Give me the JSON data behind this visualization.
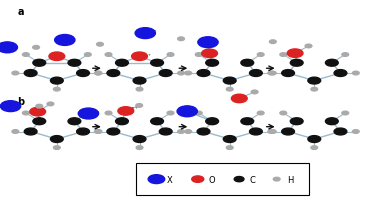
{
  "fig_width": 3.92,
  "fig_height": 2.03,
  "dpi": 100,
  "bg_color": "#ffffff",
  "blue": "#1515dd",
  "red": "#dd2222",
  "black": "#111111",
  "gray": "#aaaaaa",
  "bond_color": "#99bbcc",
  "arrow_color": "#111111",
  "label_a": "a",
  "label_b": "b",
  "legend_items": [
    "X",
    "O",
    "C",
    "H"
  ],
  "legend_colors": [
    "#1515dd",
    "#dd2222",
    "#111111",
    "#aaaaaa"
  ]
}
